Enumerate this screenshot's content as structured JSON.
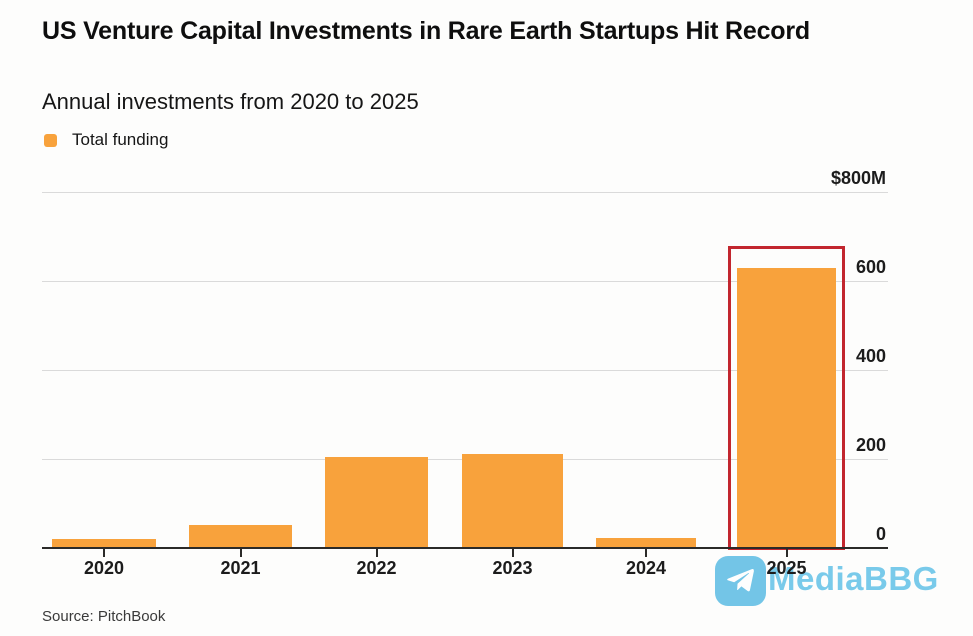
{
  "header": {
    "title": "US Venture Capital Investments in Rare Earth Startups Hit Record",
    "subtitle": "Annual investments from 2020 to 2025",
    "legend_label": "Total funding"
  },
  "chart_data": {
    "type": "bar",
    "title": "US Venture Capital Investments in Rare Earth Startups Hit Record",
    "subtitle": "Annual investments from 2020 to 2025",
    "categories": [
      "2020",
      "2021",
      "2022",
      "2023",
      "2024",
      "2025"
    ],
    "series": [
      {
        "name": "Total funding",
        "values": [
          20,
          52,
          205,
          212,
          22,
          630
        ]
      }
    ],
    "unit": "USD millions",
    "ylim": [
      0,
      800
    ],
    "ytick_values": [
      800,
      600,
      400,
      200,
      0
    ],
    "ytick_labels": [
      "$800M",
      "600",
      "400",
      "200",
      "0"
    ],
    "grid": true,
    "legend_position": "top-left",
    "highlight": {
      "category": "2025",
      "style": "red-outline-box"
    }
  },
  "footer": {
    "source": "Source: PitchBook"
  },
  "watermark": {
    "text": "MediaBBG",
    "icon": "telegram-plane-icon"
  },
  "colors": {
    "bar": "#f8a23c",
    "highlight_box": "#c2262e",
    "gridline": "#dadada",
    "axis": "#2b2a28",
    "watermark_blue": "#72c8ea",
    "watermark_icon_bg": "#6cc3e6",
    "background": "#fdfdfc"
  }
}
